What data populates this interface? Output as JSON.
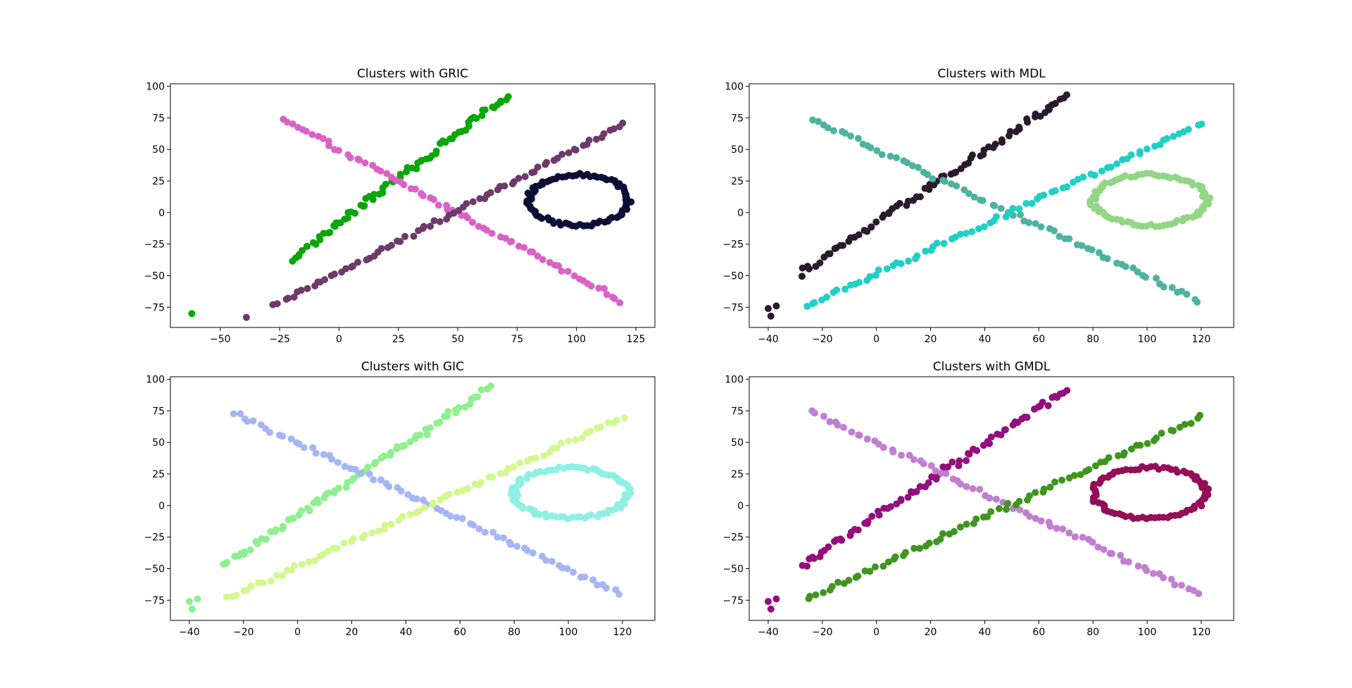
{
  "chart_data": [
    {
      "type": "scatter",
      "title": "Clusters with GRIC",
      "xlim": [
        -71,
        133
      ],
      "ylim": [
        -91,
        102
      ],
      "x_ticks": [
        -50,
        -25,
        0,
        25,
        50,
        75,
        100,
        125
      ],
      "y_ticks": [
        -75,
        -50,
        -25,
        0,
        25,
        50,
        75,
        100
      ],
      "grid": false,
      "clusters": [
        {
          "color": "#0aa60a",
          "shape": "line",
          "from": [
            -20,
            -37
          ],
          "to": [
            71,
            93
          ],
          "noise": 2.5,
          "count": 75
        },
        {
          "color": "#d962c8",
          "shape": "line",
          "from": [
            -24,
            74
          ],
          "to": [
            119,
            -70
          ],
          "noise": 1.5,
          "count": 70
        },
        {
          "color": "#6e3a6a",
          "shape": "line",
          "from": [
            -27,
            -74
          ],
          "to": [
            120,
            70
          ],
          "noise": 1.5,
          "count": 75
        },
        {
          "color": "#0c0e35",
          "shape": "ellipse",
          "center": [
            101,
            10
          ],
          "radii": [
            21,
            20
          ],
          "count": 85
        },
        {
          "color": "#0aa60a",
          "shape": "points",
          "points": [
            [
              -62,
              -80
            ]
          ]
        },
        {
          "color": "#6e3a6a",
          "shape": "points",
          "points": [
            [
              -39,
              -83
            ]
          ]
        }
      ]
    },
    {
      "type": "scatter",
      "title": "Clusters with MDL",
      "xlim": [
        -47,
        132
      ],
      "ylim": [
        -91,
        102
      ],
      "x_ticks": [
        -40,
        -20,
        0,
        20,
        40,
        60,
        80,
        100,
        120
      ],
      "y_ticks": [
        -75,
        -50,
        -25,
        0,
        25,
        50,
        75,
        100
      ],
      "grid": false,
      "clusters": [
        {
          "color": "#2a1a2e",
          "shape": "line",
          "from": [
            -28,
            -48
          ],
          "to": [
            71,
            93
          ],
          "noise": 2.5,
          "count": 75
        },
        {
          "color": "#4db3a0",
          "shape": "line",
          "from": [
            -24,
            74
          ],
          "to": [
            119,
            -70
          ],
          "noise": 1.5,
          "count": 70
        },
        {
          "color": "#20d0c4",
          "shape": "line",
          "from": [
            -26,
            -74
          ],
          "to": [
            120,
            70
          ],
          "noise": 1.5,
          "count": 75
        },
        {
          "color": "#93d686",
          "shape": "ellipse",
          "center": [
            101,
            10
          ],
          "radii": [
            21,
            20
          ],
          "count": 85
        },
        {
          "color": "#2a1a2e",
          "shape": "points",
          "points": [
            [
              -40,
              -76
            ],
            [
              -39,
              -82
            ],
            [
              -37,
              -74
            ]
          ]
        }
      ]
    },
    {
      "type": "scatter",
      "title": "Clusters with GIC",
      "xlim": [
        -47,
        132
      ],
      "ylim": [
        -91,
        102
      ],
      "x_ticks": [
        -40,
        -20,
        0,
        20,
        40,
        60,
        80,
        100,
        120
      ],
      "y_ticks": [
        -75,
        -50,
        -25,
        0,
        25,
        50,
        75,
        100
      ],
      "grid": false,
      "clusters": [
        {
          "color": "#8ef08e",
          "shape": "line",
          "from": [
            -28,
            -48
          ],
          "to": [
            71,
            93
          ],
          "noise": 2.5,
          "count": 75
        },
        {
          "color": "#a6b6f5",
          "shape": "line",
          "from": [
            -24,
            74
          ],
          "to": [
            119,
            -70
          ],
          "noise": 1.5,
          "count": 70
        },
        {
          "color": "#d2f98e",
          "shape": "line",
          "from": [
            -26,
            -74
          ],
          "to": [
            120,
            70
          ],
          "noise": 1.5,
          "count": 75
        },
        {
          "color": "#8ef0e2",
          "shape": "ellipse",
          "center": [
            101,
            10
          ],
          "radii": [
            21,
            20
          ],
          "count": 85
        },
        {
          "color": "#8ef08e",
          "shape": "points",
          "points": [
            [
              -40,
              -76
            ],
            [
              -39,
              -82
            ],
            [
              -37,
              -74
            ]
          ]
        }
      ]
    },
    {
      "type": "scatter",
      "title": "Clusters with GMDL",
      "xlim": [
        -47,
        132
      ],
      "ylim": [
        -91,
        102
      ],
      "x_ticks": [
        -40,
        -20,
        0,
        20,
        40,
        60,
        80,
        100,
        120
      ],
      "y_ticks": [
        -75,
        -50,
        -25,
        0,
        25,
        50,
        75,
        100
      ],
      "grid": false,
      "clusters": [
        {
          "color": "#930f7e",
          "shape": "line",
          "from": [
            -28,
            -48
          ],
          "to": [
            71,
            93
          ],
          "noise": 2.5,
          "count": 75
        },
        {
          "color": "#c07fd0",
          "shape": "line",
          "from": [
            -24,
            74
          ],
          "to": [
            119,
            -70
          ],
          "noise": 1.5,
          "count": 70
        },
        {
          "color": "#3f961e",
          "shape": "line",
          "from": [
            -26,
            -74
          ],
          "to": [
            120,
            70
          ],
          "noise": 1.5,
          "count": 75
        },
        {
          "color": "#930f57",
          "shape": "ellipse",
          "center": [
            101,
            10
          ],
          "radii": [
            21,
            20
          ],
          "count": 85
        },
        {
          "color": "#930f7e",
          "shape": "points",
          "points": [
            [
              -40,
              -76
            ],
            [
              -39,
              -82
            ],
            [
              -37,
              -74
            ]
          ]
        }
      ]
    }
  ]
}
